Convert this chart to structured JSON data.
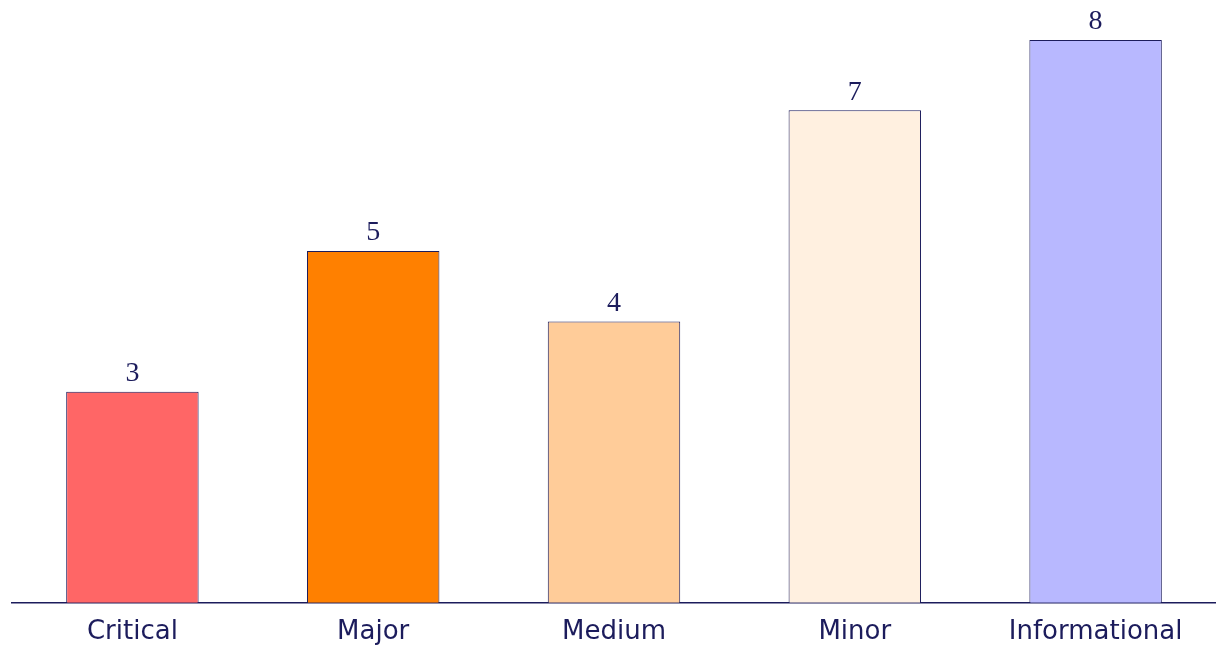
{
  "chart_data": {
    "type": "bar",
    "categories": [
      "Critical",
      "Major",
      "Medium",
      "Minor",
      "Informational"
    ],
    "values": [
      3,
      5,
      4,
      7,
      8
    ],
    "colors": [
      "#ff6666",
      "#ff8000",
      "#ffcc99",
      "#fff0e0",
      "#b8b8ff"
    ],
    "data_labels": true,
    "grid": false,
    "legend": false
  }
}
